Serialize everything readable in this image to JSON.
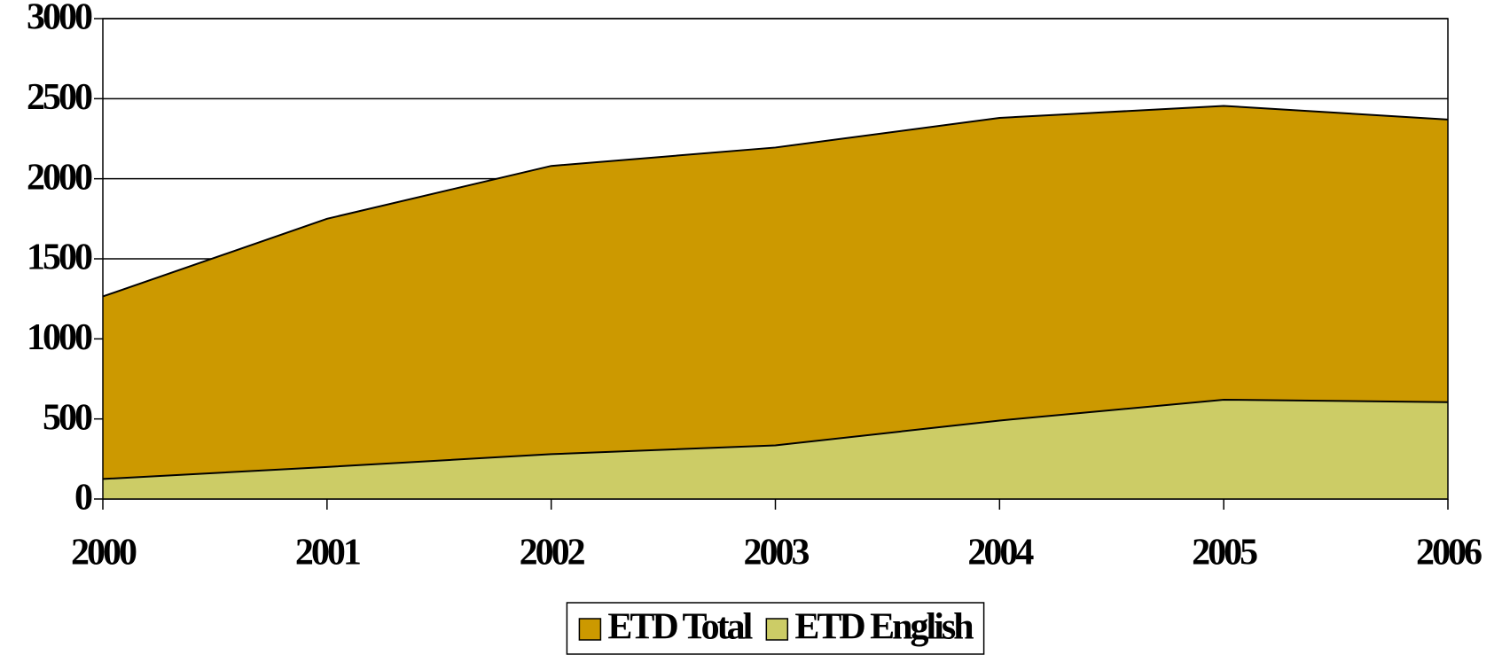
{
  "chart_data": {
    "type": "area",
    "categories": [
      "2000",
      "2001",
      "2002",
      "2003",
      "2004",
      "2005",
      "2006"
    ],
    "series": [
      {
        "name": "ETD Total",
        "color": "#cc9900",
        "values": [
          1265,
          1750,
          2080,
          2195,
          2380,
          2455,
          2370
        ]
      },
      {
        "name": "ETD English",
        "color": "#cccc66",
        "values": [
          125,
          200,
          280,
          335,
          490,
          620,
          605
        ]
      }
    ],
    "ylim": [
      0,
      3000
    ],
    "yticks": [
      0,
      500,
      1000,
      1500,
      2000,
      2500,
      3000
    ],
    "grid": true,
    "legend": "bottom"
  }
}
